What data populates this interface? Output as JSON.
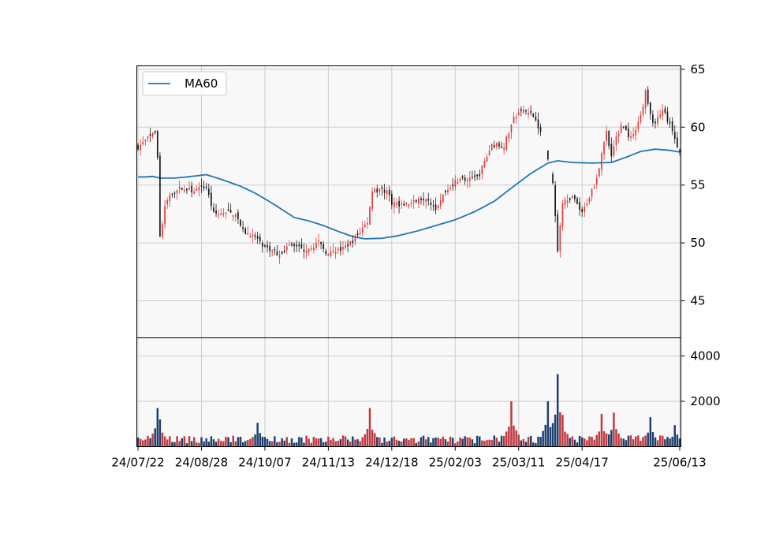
{
  "chart_data": {
    "type": "candlestick",
    "legend": {
      "entries": [
        "MA60"
      ],
      "placement": "upper-left"
    },
    "colors": {
      "up": "#e23b3b",
      "down": "#1a1a1a",
      "ma": "#1f77b4",
      "vol_up": "#c0393e",
      "vol_down": "#1f3f6f",
      "panel_bg": "#f8f8f8",
      "grid": "#cccccc"
    },
    "price_axis": {
      "ylim": [
        41.8,
        65.3
      ],
      "ticks": [
        45,
        50,
        55,
        60,
        65
      ]
    },
    "volume_axis": {
      "ylim": [
        0,
        4800
      ],
      "ticks": [
        2000,
        4000
      ]
    },
    "x_ticks": [
      {
        "label": "24/07/22",
        "index": 0
      },
      {
        "label": "24/08/28",
        "index": 26
      },
      {
        "label": "24/10/07",
        "index": 52
      },
      {
        "label": "24/11/13",
        "index": 78
      },
      {
        "label": "24/12/18",
        "index": 104
      },
      {
        "label": "25/02/03",
        "index": 130
      },
      {
        "label": "25/03/11",
        "index": 156
      },
      {
        "label": "25/04/17",
        "index": 182
      },
      {
        "label": "25/06/13",
        "index": 222
      }
    ],
    "n_days": 223,
    "price_anchors": [
      [
        0,
        58.3
      ],
      [
        4,
        59.0
      ],
      [
        7,
        59.5
      ],
      [
        8,
        57.5
      ],
      [
        9,
        50.5
      ],
      [
        11,
        53.0
      ],
      [
        13,
        54.2
      ],
      [
        18,
        54.8
      ],
      [
        22,
        54.5
      ],
      [
        28,
        54.8
      ],
      [
        31,
        52.5
      ],
      [
        40,
        52.6
      ],
      [
        43,
        51.0
      ],
      [
        48,
        50.5
      ],
      [
        52,
        49.5
      ],
      [
        58,
        49.0
      ],
      [
        62,
        49.8
      ],
      [
        68,
        49.4
      ],
      [
        74,
        50.0
      ],
      [
        78,
        49.0
      ],
      [
        84,
        49.5
      ],
      [
        88,
        50.2
      ],
      [
        94,
        51.8
      ],
      [
        96,
        54.5
      ],
      [
        102,
        54.5
      ],
      [
        104,
        53.5
      ],
      [
        108,
        53.3
      ],
      [
        112,
        53.4
      ],
      [
        118,
        54.0
      ],
      [
        122,
        53.0
      ],
      [
        127,
        54.8
      ],
      [
        132,
        55.6
      ],
      [
        135,
        55.3
      ],
      [
        140,
        56.0
      ],
      [
        145,
        58.5
      ],
      [
        150,
        58.4
      ],
      [
        154,
        60.8
      ],
      [
        158,
        61.5
      ],
      [
        163,
        60.8
      ],
      [
        167,
        58.0
      ],
      [
        170,
        55.0
      ],
      [
        172,
        49.5
      ],
      [
        174,
        53.6
      ],
      [
        178,
        54.0
      ],
      [
        182,
        52.5
      ],
      [
        188,
        55.6
      ],
      [
        192,
        59.5
      ],
      [
        194,
        57.7
      ],
      [
        198,
        60.3
      ],
      [
        202,
        59.0
      ],
      [
        206,
        61.0
      ],
      [
        208,
        63.0
      ],
      [
        211,
        60.2
      ],
      [
        215,
        61.6
      ],
      [
        218,
        60.1
      ],
      [
        222,
        57.8
      ]
    ],
    "gaps": [
      [
        165,
        168
      ],
      [
        168,
        170
      ]
    ],
    "ma60_anchors": [
      [
        0,
        55.7
      ],
      [
        3,
        55.7
      ],
      [
        6,
        55.75
      ],
      [
        9,
        55.6
      ],
      [
        15,
        55.6
      ],
      [
        20,
        55.7
      ],
      [
        28,
        55.9
      ],
      [
        34,
        55.5
      ],
      [
        42,
        54.9
      ],
      [
        48,
        54.3
      ],
      [
        56,
        53.3
      ],
      [
        64,
        52.2
      ],
      [
        70,
        51.9
      ],
      [
        76,
        51.5
      ],
      [
        82,
        51.0
      ],
      [
        88,
        50.55
      ],
      [
        93,
        50.35
      ],
      [
        100,
        50.4
      ],
      [
        106,
        50.6
      ],
      [
        114,
        51.0
      ],
      [
        122,
        51.5
      ],
      [
        130,
        52.0
      ],
      [
        138,
        52.7
      ],
      [
        146,
        53.6
      ],
      [
        154,
        54.9
      ],
      [
        161,
        56.0
      ],
      [
        168,
        56.9
      ],
      [
        172,
        57.1
      ],
      [
        178,
        56.95
      ],
      [
        186,
        56.9
      ],
      [
        194,
        56.95
      ],
      [
        200,
        57.4
      ],
      [
        206,
        57.9
      ],
      [
        212,
        58.1
      ],
      [
        218,
        58.0
      ],
      [
        222,
        57.85
      ]
    ],
    "ma60_start": 0,
    "volume_spikes": [
      [
        8,
        1700
      ],
      [
        9,
        1200
      ],
      [
        49,
        1050
      ],
      [
        95,
        1700
      ],
      [
        153,
        2000
      ],
      [
        168,
        2000
      ],
      [
        172,
        3200
      ],
      [
        174,
        1400
      ],
      [
        190,
        1450
      ],
      [
        195,
        1500
      ],
      [
        210,
        1300
      ],
      [
        220,
        950
      ]
    ]
  }
}
